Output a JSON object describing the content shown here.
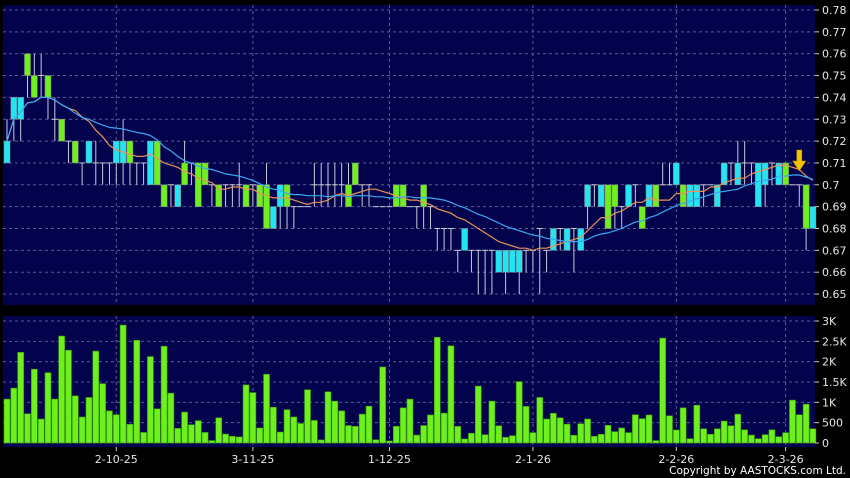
{
  "chart_data": [
    {
      "type": "candlestick",
      "panel": "price",
      "y_ticks": [
        "0.78",
        "0.77",
        "0.76",
        "0.75",
        "0.74",
        "0.73",
        "0.72",
        "0.71",
        "0.7",
        "0.69",
        "0.68",
        "0.67",
        "0.66",
        "0.65"
      ],
      "ylim": [
        0.645,
        0.782
      ],
      "grid": true,
      "colors": {
        "background": "#03034d",
        "up": "#22e4f2",
        "down": "#6ef01c",
        "doji": "#c8c8d8",
        "ma_short": "#e8925a",
        "ma_long": "#3aa8f0",
        "signal_arrow": "#f5c400"
      },
      "moving_averages": [
        {
          "period": 10,
          "color": "#e8925a"
        },
        {
          "period": 20,
          "color": "#3aa8f0"
        }
      ],
      "signal": {
        "type": "sell-arrow",
        "bar": 116
      },
      "ohlc": [
        [
          0.71,
          0.73,
          0.71,
          0.72
        ],
        [
          0.73,
          0.74,
          0.72,
          0.74
        ],
        [
          0.73,
          0.74,
          0.72,
          0.74
        ],
        [
          0.76,
          0.76,
          0.74,
          0.75
        ],
        [
          0.75,
          0.76,
          0.74,
          0.74
        ],
        [
          0.75,
          0.76,
          0.74,
          0.75
        ],
        [
          0.75,
          0.75,
          0.73,
          0.74
        ],
        [
          0.73,
          0.74,
          0.72,
          0.73
        ],
        [
          0.73,
          0.73,
          0.72,
          0.72
        ],
        [
          0.72,
          0.72,
          0.71,
          0.72
        ],
        [
          0.72,
          0.72,
          0.71,
          0.71
        ],
        [
          0.71,
          0.71,
          0.7,
          0.71
        ],
        [
          0.71,
          0.72,
          0.71,
          0.72
        ],
        [
          0.71,
          0.72,
          0.7,
          0.71
        ],
        [
          0.71,
          0.71,
          0.7,
          0.71
        ],
        [
          0.71,
          0.71,
          0.7,
          0.71
        ],
        [
          0.71,
          0.72,
          0.7,
          0.72
        ],
        [
          0.71,
          0.73,
          0.7,
          0.72
        ],
        [
          0.72,
          0.72,
          0.7,
          0.71
        ],
        [
          0.71,
          0.71,
          0.7,
          0.71
        ],
        [
          0.71,
          0.71,
          0.7,
          0.71
        ],
        [
          0.7,
          0.72,
          0.7,
          0.72
        ],
        [
          0.72,
          0.72,
          0.7,
          0.7
        ],
        [
          0.7,
          0.7,
          0.69,
          0.69
        ],
        [
          0.7,
          0.7,
          0.69,
          0.7
        ],
        [
          0.69,
          0.7,
          0.69,
          0.7
        ],
        [
          0.71,
          0.72,
          0.7,
          0.7
        ],
        [
          0.71,
          0.71,
          0.7,
          0.71
        ],
        [
          0.71,
          0.71,
          0.69,
          0.69
        ],
        [
          0.71,
          0.71,
          0.7,
          0.7
        ],
        [
          0.7,
          0.7,
          0.69,
          0.7
        ],
        [
          0.7,
          0.7,
          0.69,
          0.69
        ],
        [
          0.7,
          0.7,
          0.69,
          0.7
        ],
        [
          0.7,
          0.7,
          0.69,
          0.7
        ],
        [
          0.7,
          0.71,
          0.69,
          0.7
        ],
        [
          0.7,
          0.7,
          0.69,
          0.69
        ],
        [
          0.7,
          0.7,
          0.69,
          0.7
        ],
        [
          0.7,
          0.7,
          0.69,
          0.69
        ],
        [
          0.7,
          0.71,
          0.68,
          0.68
        ],
        [
          0.68,
          0.69,
          0.68,
          0.69
        ],
        [
          0.69,
          0.7,
          0.68,
          0.7
        ],
        [
          0.7,
          0.7,
          0.68,
          0.69
        ],
        [
          0.69,
          0.69,
          0.68,
          0.69
        ],
        [
          0.69,
          0.69,
          0.69,
          0.69
        ],
        [
          0.69,
          0.69,
          0.69,
          0.69
        ],
        [
          0.7,
          0.71,
          0.69,
          0.7
        ],
        [
          0.7,
          0.71,
          0.69,
          0.7
        ],
        [
          0.7,
          0.71,
          0.69,
          0.7
        ],
        [
          0.7,
          0.71,
          0.69,
          0.7
        ],
        [
          0.7,
          0.71,
          0.69,
          0.7
        ],
        [
          0.7,
          0.71,
          0.69,
          0.69
        ],
        [
          0.71,
          0.71,
          0.7,
          0.7
        ],
        [
          0.7,
          0.7,
          0.69,
          0.7
        ],
        [
          0.7,
          0.7,
          0.69,
          0.7
        ],
        [
          0.69,
          0.69,
          0.69,
          0.69
        ],
        [
          0.69,
          0.69,
          0.69,
          0.69
        ],
        [
          0.69,
          0.69,
          0.69,
          0.69
        ],
        [
          0.7,
          0.7,
          0.69,
          0.69
        ],
        [
          0.7,
          0.7,
          0.69,
          0.69
        ],
        [
          0.69,
          0.69,
          0.69,
          0.69
        ],
        [
          0.69,
          0.69,
          0.68,
          0.69
        ],
        [
          0.7,
          0.7,
          0.68,
          0.69
        ],
        [
          0.69,
          0.69,
          0.68,
          0.69
        ],
        [
          0.68,
          0.68,
          0.67,
          0.68
        ],
        [
          0.68,
          0.68,
          0.67,
          0.68
        ],
        [
          0.68,
          0.68,
          0.67,
          0.68
        ],
        [
          0.67,
          0.67,
          0.66,
          0.67
        ],
        [
          0.67,
          0.68,
          0.67,
          0.68
        ],
        [
          0.67,
          0.67,
          0.66,
          0.67
        ],
        [
          0.67,
          0.67,
          0.65,
          0.67
        ],
        [
          0.67,
          0.67,
          0.65,
          0.67
        ],
        [
          0.67,
          0.67,
          0.65,
          0.67
        ],
        [
          0.66,
          0.67,
          0.66,
          0.67
        ],
        [
          0.66,
          0.67,
          0.65,
          0.67
        ],
        [
          0.66,
          0.67,
          0.66,
          0.67
        ],
        [
          0.66,
          0.67,
          0.65,
          0.67
        ],
        [
          0.67,
          0.67,
          0.66,
          0.67
        ],
        [
          0.67,
          0.67,
          0.66,
          0.67
        ],
        [
          0.68,
          0.68,
          0.65,
          0.68
        ],
        [
          0.67,
          0.67,
          0.66,
          0.67
        ],
        [
          0.67,
          0.68,
          0.67,
          0.68
        ],
        [
          0.68,
          0.68,
          0.67,
          0.68
        ],
        [
          0.67,
          0.68,
          0.67,
          0.68
        ],
        [
          0.68,
          0.68,
          0.66,
          0.68
        ],
        [
          0.67,
          0.68,
          0.67,
          0.68
        ],
        [
          0.69,
          0.7,
          0.68,
          0.7
        ],
        [
          0.7,
          0.7,
          0.69,
          0.7
        ],
        [
          0.69,
          0.7,
          0.69,
          0.7
        ],
        [
          0.7,
          0.7,
          0.68,
          0.68
        ],
        [
          0.7,
          0.7,
          0.68,
          0.69
        ],
        [
          0.69,
          0.69,
          0.68,
          0.69
        ],
        [
          0.69,
          0.7,
          0.69,
          0.7
        ],
        [
          0.7,
          0.7,
          0.69,
          0.7
        ],
        [
          0.69,
          0.69,
          0.68,
          0.68
        ],
        [
          0.69,
          0.7,
          0.69,
          0.7
        ],
        [
          0.7,
          0.7,
          0.69,
          0.69
        ],
        [
          0.7,
          0.71,
          0.7,
          0.7
        ],
        [
          0.7,
          0.71,
          0.7,
          0.7
        ],
        [
          0.7,
          0.71,
          0.7,
          0.71
        ],
        [
          0.7,
          0.7,
          0.69,
          0.69
        ],
        [
          0.69,
          0.7,
          0.69,
          0.7
        ],
        [
          0.69,
          0.7,
          0.69,
          0.7
        ],
        [
          0.7,
          0.7,
          0.69,
          0.7
        ],
        [
          0.7,
          0.7,
          0.7,
          0.7
        ],
        [
          0.69,
          0.7,
          0.69,
          0.7
        ],
        [
          0.7,
          0.71,
          0.7,
          0.71
        ],
        [
          0.71,
          0.71,
          0.7,
          0.71
        ],
        [
          0.7,
          0.72,
          0.7,
          0.71
        ],
        [
          0.71,
          0.72,
          0.7,
          0.71
        ],
        [
          0.71,
          0.71,
          0.7,
          0.71
        ],
        [
          0.69,
          0.71,
          0.69,
          0.71
        ],
        [
          0.7,
          0.71,
          0.69,
          0.71
        ],
        [
          0.71,
          0.71,
          0.7,
          0.71
        ],
        [
          0.7,
          0.71,
          0.7,
          0.71
        ],
        [
          0.71,
          0.71,
          0.7,
          0.7
        ],
        [
          0.7,
          0.7,
          0.7,
          0.7
        ],
        [
          0.7,
          0.7,
          0.69,
          0.7
        ],
        [
          0.7,
          0.7,
          0.67,
          0.68
        ],
        [
          0.68,
          0.69,
          0.68,
          0.69
        ]
      ]
    },
    {
      "type": "bar",
      "panel": "volume",
      "y_ticks": [
        "3K",
        "2.5K",
        "2K",
        "1.5K",
        "1K",
        "500",
        "0"
      ],
      "ylim": [
        0,
        3000
      ],
      "grid": true,
      "colors": {
        "bar": "#6ef01c",
        "background": "#03034d"
      },
      "values": [
        1080,
        1350,
        2230,
        720,
        1815,
        590,
        1730,
        1080,
        2630,
        2280,
        1160,
        640,
        1120,
        2260,
        1460,
        790,
        695,
        2900,
        460,
        2525,
        260,
        2125,
        840,
        2380,
        1225,
        360,
        760,
        450,
        550,
        260,
        60,
        620,
        220,
        165,
        150,
        1430,
        1240,
        370,
        1690,
        880,
        270,
        820,
        640,
        480,
        1310,
        555,
        75,
        1260,
        1030,
        790,
        430,
        410,
        710,
        905,
        80,
        1870,
        50,
        410,
        865,
        1080,
        195,
        430,
        690,
        2600,
        735,
        2390,
        410,
        100,
        240,
        1400,
        205,
        1030,
        425,
        140,
        180,
        1510,
        900,
        255,
        1120,
        590,
        730,
        620,
        465,
        190,
        475,
        590,
        165,
        215,
        435,
        280,
        370,
        255,
        695,
        600,
        690,
        60,
        2580,
        670,
        320,
        865,
        105,
        930,
        350,
        215,
        350,
        540,
        425,
        710,
        325,
        195,
        105,
        205,
        325,
        155,
        255,
        1055,
        695,
        955,
        350
      ]
    }
  ],
  "x_axis": {
    "labels": [
      "2-10-25",
      "3-11-25",
      "1-12-25",
      "2-1-26",
      "2-2-26",
      "2-3-26"
    ],
    "label_bars": [
      16,
      36,
      56,
      77,
      98,
      114
    ]
  },
  "copyright": "Copyright by AASTOCKS.com Ltd."
}
